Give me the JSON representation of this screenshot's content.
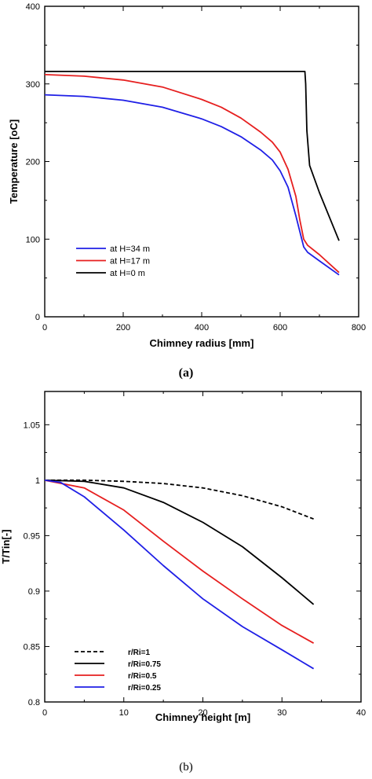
{
  "chart_data": [
    {
      "type": "line",
      "caption": "(a)",
      "xlabel": "Chimney radius [mm]",
      "ylabel": "Temperature [oC]",
      "xlim": [
        0,
        800
      ],
      "ylim": [
        0,
        400
      ],
      "xticks": [
        0,
        200,
        400,
        600,
        800
      ],
      "yticks": [
        0,
        100,
        200,
        300,
        400
      ],
      "grid": false,
      "legend_position": "bottom-left",
      "series": [
        {
          "name": "at H=34 m",
          "color": "#1f1fe6",
          "x": [
            0,
            100,
            200,
            300,
            400,
            450,
            500,
            550,
            580,
            600,
            620,
            640,
            650,
            660,
            670,
            700,
            750
          ],
          "y": [
            286,
            284,
            279,
            270,
            255,
            245,
            232,
            215,
            202,
            188,
            167,
            130,
            110,
            90,
            83,
            72,
            54
          ]
        },
        {
          "name": "at H=17 m",
          "color": "#e61f1f",
          "x": [
            0,
            100,
            200,
            300,
            400,
            450,
            500,
            550,
            580,
            600,
            620,
            640,
            650,
            660,
            670,
            700,
            750
          ],
          "y": [
            312,
            310,
            305,
            296,
            280,
            270,
            256,
            238,
            225,
            212,
            190,
            155,
            125,
            100,
            92,
            80,
            57
          ]
        },
        {
          "name": "at H=0 m",
          "color": "#000000",
          "x": [
            0,
            600,
            663,
            665,
            668,
            675,
            700,
            750
          ],
          "y": [
            316,
            316,
            316,
            300,
            240,
            195,
            160,
            98
          ]
        }
      ]
    },
    {
      "type": "line",
      "caption": "(b)",
      "xlabel": "Chimney height [m]",
      "ylabel": "T/Tin[-]",
      "xlim": [
        0,
        40
      ],
      "ylim": [
        0.8,
        1.08
      ],
      "xticks": [
        0,
        10,
        20,
        30,
        40
      ],
      "xtick_labels": [
        "0",
        "10",
        "20",
        "30",
        "40"
      ],
      "yticks": [
        0.8,
        0.85,
        0.9,
        0.95,
        1.0,
        1.05
      ],
      "ytick_labels": [
        "0.8",
        "0.85",
        "0.9",
        "0.95",
        "1",
        "1.05"
      ],
      "grid": false,
      "legend_position": "bottom-left",
      "series": [
        {
          "name": "r/Ri=1",
          "color": "#000000",
          "dash": true,
          "x": [
            0,
            5,
            10,
            15,
            20,
            25,
            30,
            34
          ],
          "y": [
            1.0,
            1.0,
            0.999,
            0.997,
            0.993,
            0.986,
            0.976,
            0.965
          ]
        },
        {
          "name": "r/Ri=0.75",
          "color": "#000000",
          "x": [
            0,
            5,
            10,
            15,
            20,
            25,
            30,
            34
          ],
          "y": [
            1.0,
            0.999,
            0.993,
            0.98,
            0.962,
            0.94,
            0.912,
            0.888
          ]
        },
        {
          "name": "r/Ri=0.5",
          "color": "#e61f1f",
          "x": [
            0,
            5,
            10,
            15,
            20,
            25,
            30,
            34
          ],
          "y": [
            1.0,
            0.993,
            0.973,
            0.945,
            0.918,
            0.893,
            0.869,
            0.853
          ]
        },
        {
          "name": "r/Ri=0.25",
          "color": "#1f1fe6",
          "x": [
            0,
            2,
            5,
            10,
            15,
            20,
            25,
            30,
            34
          ],
          "y": [
            1.0,
            0.998,
            0.985,
            0.955,
            0.923,
            0.893,
            0.868,
            0.847,
            0.83
          ]
        }
      ]
    }
  ]
}
